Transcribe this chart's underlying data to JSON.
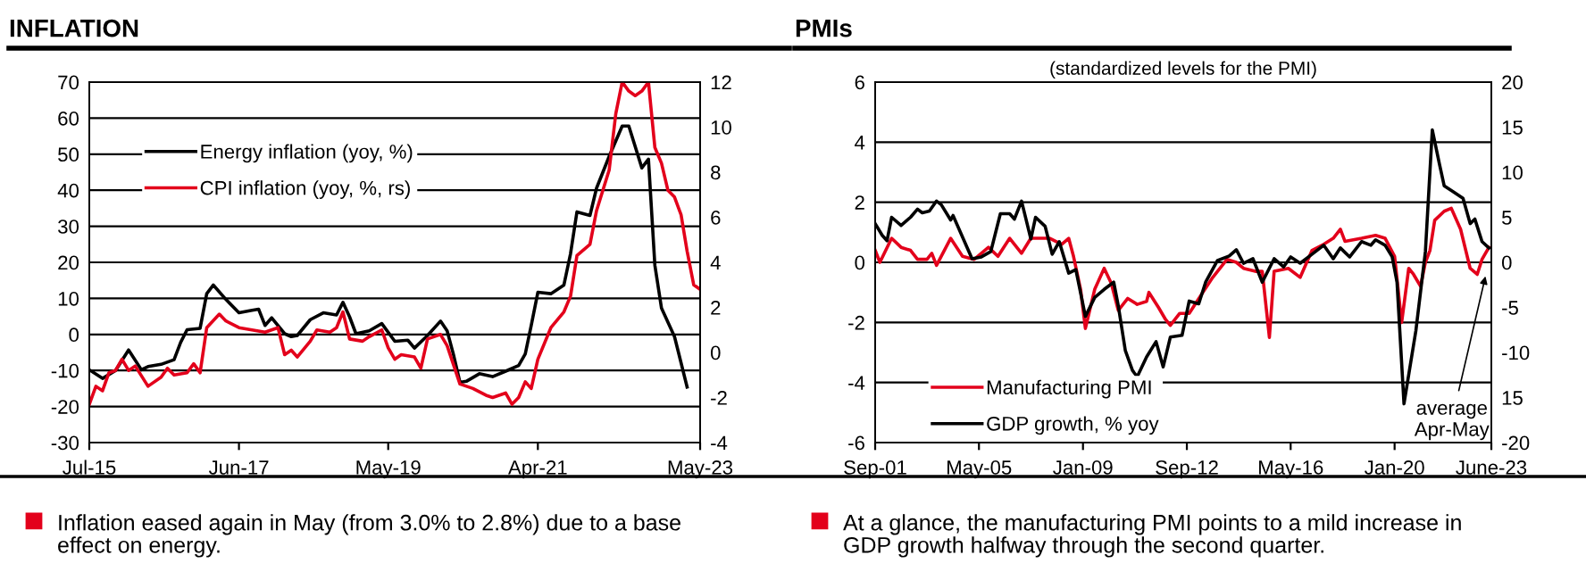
{
  "chart_data": [
    {
      "type": "line",
      "title": "INFLATION",
      "xlim": [
        "2015-07",
        "2023-05"
      ],
      "xticks": [
        {
          "value": "2015-07",
          "label": "Jul-15"
        },
        {
          "value": "2017-06",
          "label": "Jun-17"
        },
        {
          "value": "2019-05",
          "label": "May-19"
        },
        {
          "value": "2021-04",
          "label": "Apr-21"
        },
        {
          "value": "2023-05",
          "label": "May-23"
        }
      ],
      "ylim": [
        -30,
        70
      ],
      "yticks": [
        -30,
        -20,
        -10,
        0,
        10,
        20,
        30,
        40,
        50,
        60,
        70
      ],
      "y2lim": [
        -4,
        12
      ],
      "y2ticks": [
        -4,
        -2,
        0,
        2,
        4,
        6,
        8,
        10,
        12
      ],
      "grid": "y",
      "legend": "top left",
      "series": [
        {
          "name": "Energy inflation (yoy, %)",
          "color": "#000000",
          "axis": "y",
          "x": [
            "2015-07",
            "2015-09",
            "2015-11",
            "2016-01",
            "2016-03",
            "2016-04",
            "2016-06",
            "2016-08",
            "2016-09",
            "2016-10",
            "2016-12",
            "2017-01",
            "2017-02",
            "2017-04",
            "2017-06",
            "2017-08",
            "2017-09",
            "2017-10",
            "2017-11",
            "2018-01",
            "2018-02",
            "2018-03",
            "2018-05",
            "2018-07",
            "2018-09",
            "2018-10",
            "2018-11",
            "2018-12",
            "2019-02",
            "2019-04",
            "2019-06",
            "2019-08",
            "2019-09",
            "2019-11",
            "2020-01",
            "2020-02",
            "2020-03",
            "2020-04",
            "2020-05",
            "2020-07",
            "2020-09",
            "2020-11",
            "2021-01",
            "2021-02",
            "2021-03",
            "2021-04",
            "2021-06",
            "2021-08",
            "2021-09",
            "2021-10",
            "2021-12",
            "2022-01",
            "2022-03",
            "2022-05",
            "2022-06",
            "2022-08",
            "2022-09",
            "2022-10",
            "2022-11",
            "2023-01",
            "2023-03"
          ],
          "values": [
            -9.8,
            -12.2,
            -10,
            -4.3,
            -9.8,
            -8.9,
            -8.3,
            -7,
            -2.2,
            1.3,
            1.7,
            11.3,
            13.7,
            9.7,
            6,
            6.7,
            7,
            2.5,
            4.6,
            0.2,
            -0.6,
            -0.3,
            4.1,
            6,
            5.4,
            8.9,
            4.9,
            0.2,
            1,
            3,
            -1.9,
            -1.6,
            -3.8,
            -0.3,
            3.7,
            1,
            -5.4,
            -13.3,
            -13,
            -10.9,
            -11.7,
            -10.2,
            -8.6,
            -5.4,
            2.5,
            11.7,
            11.3,
            13.7,
            22.4,
            34,
            33,
            40.6,
            49.4,
            57.8,
            57.8,
            46.2,
            48.6,
            19.2,
            7.3,
            -0.6,
            -14.6
          ]
        },
        {
          "name": "CPI inflation (yoy, %, rs)",
          "color": "#e3001b",
          "axis": "y2",
          "x": [
            "2015-07",
            "2015-08",
            "2015-09",
            "2015-10",
            "2015-11",
            "2015-12",
            "2016-01",
            "2016-02",
            "2016-04",
            "2016-06",
            "2016-07",
            "2016-08",
            "2016-10",
            "2016-11",
            "2016-12",
            "2017-01",
            "2017-03",
            "2017-04",
            "2017-06",
            "2017-08",
            "2017-10",
            "2017-12",
            "2018-01",
            "2018-02",
            "2018-03",
            "2018-05",
            "2018-06",
            "2018-08",
            "2018-09",
            "2018-10",
            "2018-11",
            "2019-01",
            "2019-02",
            "2019-04",
            "2019-05",
            "2019-06",
            "2019-07",
            "2019-09",
            "2019-10",
            "2019-11",
            "2020-01",
            "2020-02",
            "2020-04",
            "2020-06",
            "2020-08",
            "2020-09",
            "2020-11",
            "2020-12",
            "2021-01",
            "2021-02",
            "2021-03",
            "2021-04",
            "2021-06",
            "2021-08",
            "2021-09",
            "2021-10",
            "2021-12",
            "2022-01",
            "2022-03",
            "2022-04",
            "2022-05",
            "2022-06",
            "2022-07",
            "2022-08",
            "2022-09",
            "2022-10",
            "2022-11",
            "2022-12",
            "2023-01",
            "2023-02",
            "2023-03",
            "2023-04",
            "2023-05"
          ],
          "values": [
            -2.3,
            -1.5,
            -1.7,
            -0.9,
            -0.8,
            -0.3,
            -0.8,
            -0.6,
            -1.5,
            -1.1,
            -0.7,
            -1,
            -0.9,
            -0.5,
            -0.9,
            1.1,
            1.7,
            1.4,
            1.1,
            1.0,
            0.9,
            1.1,
            -0.1,
            0.1,
            -0.2,
            0.5,
            1.0,
            0.9,
            1.1,
            1.8,
            0.6,
            0.5,
            0.7,
            1.0,
            0.2,
            -0.3,
            -0.1,
            -0.2,
            -0.7,
            0.6,
            0.8,
            0.3,
            -1.4,
            -1.6,
            -1.9,
            -2.0,
            -1.8,
            -2.3,
            -2.0,
            -1.3,
            -1.6,
            -0.3,
            1.1,
            1.8,
            2.5,
            4.3,
            4.8,
            6.3,
            8.1,
            10.6,
            12,
            11.6,
            11.4,
            11.6,
            12,
            9.1,
            8.4,
            7.2,
            6.9,
            6.1,
            4.5,
            3.0,
            2.8
          ]
        }
      ],
      "annotations": [
        "Inflation eased again in May (from 3.0% to 2.8%) due to a base\neffect on energy."
      ]
    },
    {
      "type": "line",
      "title": "PMIs",
      "subtitle": "(standardized levels for the PMI)",
      "xlim": [
        "2001-09",
        "2023-06"
      ],
      "xticks": [
        {
          "value": "2001-09",
          "label": "Sep-01"
        },
        {
          "value": "2005-05",
          "label": "May-05"
        },
        {
          "value": "2009-01",
          "label": "Jan-09"
        },
        {
          "value": "2012-09",
          "label": "Sep-12"
        },
        {
          "value": "2016-05",
          "label": "May-16"
        },
        {
          "value": "2020-01",
          "label": "Jan-20"
        },
        {
          "value": "2023-06",
          "label": "June-23"
        }
      ],
      "ylim": [
        -6,
        6
      ],
      "yticks": [
        -6,
        -4,
        -2,
        0,
        2,
        4,
        6
      ],
      "y2lim": [
        -20,
        20
      ],
      "y2ticks": [
        -20,
        {
          "value": -15,
          "label": "15"
        },
        -10,
        -5,
        0,
        5,
        10,
        15,
        20
      ],
      "grid": "y",
      "legend": "bottom left",
      "series": [
        {
          "name": "Manufacturing PMI",
          "color": "#e3001b",
          "axis": "y",
          "x": [
            "2001-09",
            "2001-11",
            "2002-04",
            "2002-08",
            "2002-12",
            "2003-03",
            "2003-07",
            "2003-09",
            "2003-11",
            "2004-05",
            "2004-10",
            "2005-03",
            "2005-09",
            "2006-01",
            "2006-06",
            "2006-11",
            "2007-03",
            "2007-11",
            "2008-04",
            "2008-07",
            "2008-09",
            "2008-12",
            "2009-02",
            "2009-06",
            "2009-10",
            "2010-01",
            "2010-04",
            "2010-08",
            "2010-12",
            "2011-04",
            "2011-05",
            "2011-09",
            "2011-12",
            "2012-02",
            "2012-06",
            "2012-10",
            "2013-03",
            "2013-08",
            "2014-02",
            "2014-06",
            "2014-09",
            "2015-02",
            "2015-05",
            "2015-08",
            "2015-10",
            "2016-04",
            "2016-09",
            "2017-02",
            "2017-07",
            "2017-11",
            "2018-02",
            "2018-04",
            "2018-11",
            "2019-05",
            "2019-09",
            "2020-01",
            "2020-04",
            "2020-07",
            "2020-09",
            "2020-12",
            "2021-02",
            "2021-04",
            "2021-06",
            "2021-10",
            "2022-01",
            "2022-05",
            "2022-09",
            "2022-12",
            "2023-02",
            "2023-05"
          ],
          "values": [
            0.4,
            0,
            0.8,
            0.5,
            0.4,
            0.1,
            0.1,
            0.3,
            -0.1,
            0.8,
            0.2,
            0.1,
            0.5,
            0.2,
            0.8,
            0.3,
            0.8,
            0.8,
            0.6,
            0.8,
            0.2,
            -0.9,
            -2.2,
            -0.9,
            -0.2,
            -0.7,
            -1.6,
            -1.2,
            -1.4,
            -1.3,
            -1.0,
            -1.5,
            -1.9,
            -2.1,
            -1.7,
            -1.7,
            -1.1,
            -0.5,
            0.1,
            0,
            -0.2,
            -0.3,
            -0.3,
            -2.5,
            -0.3,
            -0.2,
            -0.5,
            0.4,
            0.6,
            0.8,
            1.1,
            0.7,
            0.8,
            0.9,
            0.8,
            0.2,
            -2.0,
            -0.2,
            -0.4,
            -0.8,
            0,
            0.4,
            1.4,
            1.7,
            1.8,
            1.1,
            -0.2,
            -0.4,
            0.1,
            0.5
          ]
        },
        {
          "name": "GDP growth, % yoy",
          "color": "#000000",
          "axis": "y2",
          "x": [
            "2001-09",
            "2001-12",
            "2002-02",
            "2002-04",
            "2002-08",
            "2002-12",
            "2003-03",
            "2003-05",
            "2003-08",
            "2003-11",
            "2004-01",
            "2004-05",
            "2004-06",
            "2005-02",
            "2005-06",
            "2005-10",
            "2006-02",
            "2006-06",
            "2006-08",
            "2006-11",
            "2007-03",
            "2007-05",
            "2007-09",
            "2007-12",
            "2008-03",
            "2008-07",
            "2008-10",
            "2009-02",
            "2009-06",
            "2009-10",
            "2010-02",
            "2010-04",
            "2010-07",
            "2010-10",
            "2010-12",
            "2011-04",
            "2011-08",
            "2011-11",
            "2012-02",
            "2012-07",
            "2012-10",
            "2013-02",
            "2013-05",
            "2013-10",
            "2014-03",
            "2014-06",
            "2014-09",
            "2015-01",
            "2015-05",
            "2015-10",
            "2016-02",
            "2016-05",
            "2016-09",
            "2017-02",
            "2017-07",
            "2017-11",
            "2018-02",
            "2018-06",
            "2018-11",
            "2019-03",
            "2019-05",
            "2019-09",
            "2019-12",
            "2020-02",
            "2020-05",
            "2020-10",
            "2021-02",
            "2021-05",
            "2021-08",
            "2021-10",
            "2022-02",
            "2022-06",
            "2022-09",
            "2022-11",
            "2023-02",
            "2023-05"
          ],
          "values": [
            4.3,
            3.0,
            2.4,
            5.0,
            4.1,
            5.0,
            5.9,
            5.5,
            5.7,
            6.8,
            6.4,
            4.7,
            5.2,
            0.4,
            0.6,
            1.2,
            5.4,
            5.4,
            4.8,
            6.8,
            2.6,
            5.0,
            4.0,
            0.9,
            2.3,
            -1.2,
            -0.8,
            -6.0,
            -3.9,
            -3.0,
            -2.2,
            -4.8,
            -9.8,
            -12.0,
            -12.7,
            -10.5,
            -8.8,
            -11.6,
            -8.3,
            -8.1,
            -4.3,
            -4.6,
            -2.2,
            0.2,
            0.7,
            1.4,
            -0.1,
            0.4,
            -2.2,
            0.4,
            -0.5,
            0.6,
            -0.1,
            0.9,
            1.9,
            0.4,
            1.6,
            0.6,
            2.3,
            1.9,
            2.5,
            1.9,
            0.6,
            -2.2,
            -15.7,
            -7.6,
            1.2,
            14.7,
            10.9,
            8.5,
            7.8,
            7.1,
            4.3,
            4.8,
            2.3,
            1.6
          ]
        }
      ],
      "annotations": [
        {
          "text": "average\nApr-May",
          "x": "2023-04",
          "y": -0.3
        },
        "At a glance, the manufacturing PMI points to a mild increase in\nGDP growth halfway through the second quarter."
      ]
    }
  ]
}
